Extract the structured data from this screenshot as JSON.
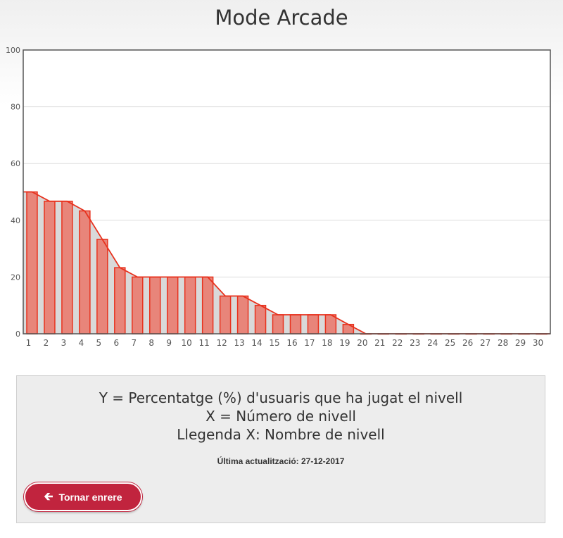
{
  "page": {
    "title": "Mode Arcade"
  },
  "chart_data": {
    "type": "bar",
    "title": "Mode Arcade",
    "xlabel": "",
    "ylabel": "",
    "ylim": [
      0,
      100
    ],
    "yticks": [
      0,
      20,
      40,
      60,
      80,
      100
    ],
    "categories": [
      "1",
      "2",
      "3",
      "4",
      "5",
      "6",
      "7",
      "8",
      "9",
      "10",
      "11",
      "12",
      "13",
      "14",
      "15",
      "16",
      "17",
      "18",
      "19",
      "20",
      "21",
      "22",
      "23",
      "24",
      "25",
      "26",
      "27",
      "28",
      "29",
      "30"
    ],
    "values": [
      50,
      46.7,
      46.7,
      43.3,
      33.3,
      23.3,
      20,
      20,
      20,
      20,
      20,
      13.3,
      13.3,
      10,
      6.7,
      6.7,
      6.7,
      6.7,
      3.3,
      0,
      0,
      0,
      0,
      0,
      0,
      0,
      0,
      0,
      0,
      0
    ],
    "overlay_line": "same values connected as filled area",
    "colors": {
      "bar_fill": "#e8857a",
      "bar_stroke": "#e8321e",
      "area_fill": "#d9d9d9",
      "line": "#e8321e",
      "grid": "#dddddd",
      "frame": "#555555"
    }
  },
  "info": {
    "line_y": "Y = Percentatge (%) d'usuaris que ha jugat el nivell",
    "line_x": "X = Número de nivell",
    "line_legend": "Llegenda X: Nombre de nivell",
    "updated": "Última actualització: 27-12-2017",
    "back_button": "Tornar enrere",
    "back_icon": "arrow-left-icon",
    "button_color": "#c1243e"
  }
}
